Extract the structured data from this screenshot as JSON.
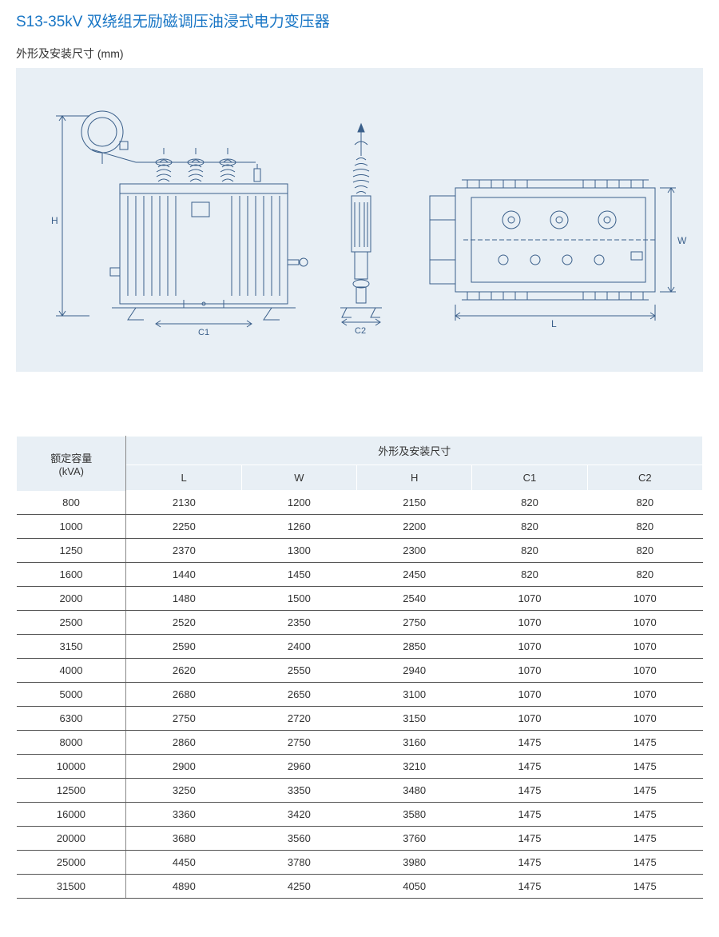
{
  "title": "S13-35kV 双绕组无励磁调压油浸式电力变压器",
  "subtitle": "外形及安装尺寸 (mm)",
  "diagram": {
    "background_color": "#e8eff5",
    "stroke_color": "#3a5f8a",
    "labels": {
      "H": "H",
      "C1": "C1",
      "C2": "C2",
      "L": "L",
      "W": "W"
    }
  },
  "table": {
    "header_bg": "#e8eff5",
    "border_color": "#555555",
    "header": {
      "capacity_line1": "额定容量",
      "capacity_line2": "(kVA)",
      "dims_title": "外形及安装尺寸",
      "cols": [
        "L",
        "W",
        "H",
        "C1",
        "C2"
      ]
    },
    "rows": [
      {
        "cap": "800",
        "L": "2130",
        "W": "1200",
        "H": "2150",
        "C1": "820",
        "C2": "820"
      },
      {
        "cap": "1000",
        "L": "2250",
        "W": "1260",
        "H": "2200",
        "C1": "820",
        "C2": "820"
      },
      {
        "cap": "1250",
        "L": "2370",
        "W": "1300",
        "H": "2300",
        "C1": "820",
        "C2": "820"
      },
      {
        "cap": "1600",
        "L": "1440",
        "W": "1450",
        "H": "2450",
        "C1": "820",
        "C2": "820"
      },
      {
        "cap": "2000",
        "L": "1480",
        "W": "1500",
        "H": "2540",
        "C1": "1070",
        "C2": "1070"
      },
      {
        "cap": "2500",
        "L": "2520",
        "W": "2350",
        "H": "2750",
        "C1": "1070",
        "C2": "1070"
      },
      {
        "cap": "3150",
        "L": "2590",
        "W": "2400",
        "H": "2850",
        "C1": "1070",
        "C2": "1070"
      },
      {
        "cap": "4000",
        "L": "2620",
        "W": "2550",
        "H": "2940",
        "C1": "1070",
        "C2": "1070"
      },
      {
        "cap": "5000",
        "L": "2680",
        "W": "2650",
        "H": "3100",
        "C1": "1070",
        "C2": "1070"
      },
      {
        "cap": "6300",
        "L": "2750",
        "W": "2720",
        "H": "3150",
        "C1": "1070",
        "C2": "1070"
      },
      {
        "cap": "8000",
        "L": "2860",
        "W": "2750",
        "H": "3160",
        "C1": "1475",
        "C2": "1475"
      },
      {
        "cap": "10000",
        "L": "2900",
        "W": "2960",
        "H": "3210",
        "C1": "1475",
        "C2": "1475"
      },
      {
        "cap": "12500",
        "L": "3250",
        "W": "3350",
        "H": "3480",
        "C1": "1475",
        "C2": "1475"
      },
      {
        "cap": "16000",
        "L": "3360",
        "W": "3420",
        "H": "3580",
        "C1": "1475",
        "C2": "1475"
      },
      {
        "cap": "20000",
        "L": "3680",
        "W": "3560",
        "H": "3760",
        "C1": "1475",
        "C2": "1475"
      },
      {
        "cap": "25000",
        "L": "4450",
        "W": "3780",
        "H": "3980",
        "C1": "1475",
        "C2": "1475"
      },
      {
        "cap": "31500",
        "L": "4890",
        "W": "4250",
        "H": "4050",
        "C1": "1475",
        "C2": "1475"
      }
    ]
  }
}
